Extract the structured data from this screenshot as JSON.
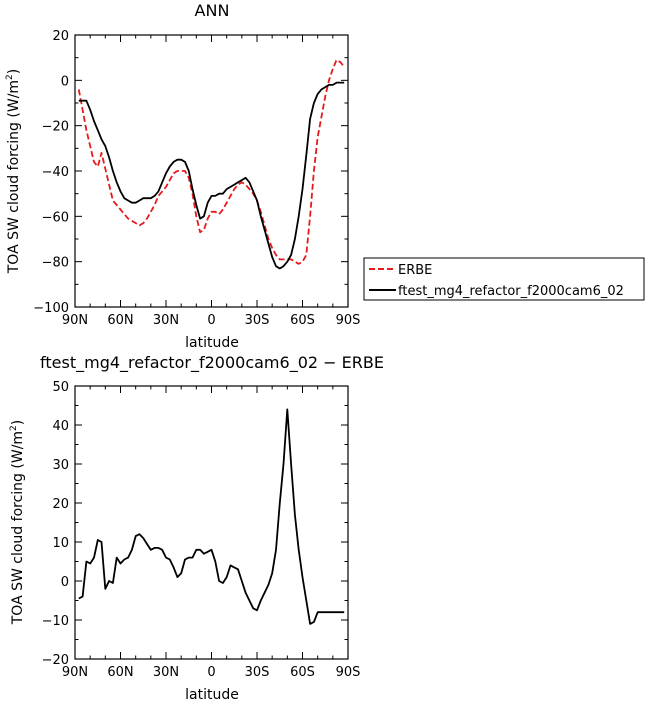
{
  "chart_data": [
    {
      "type": "line",
      "title": "ANN",
      "xlabel": "",
      "ylabel": "TOA SW cloud forcing (W/m²)",
      "ylabel_main": "TOA SW cloud forcing (W/m",
      "ylabel_sup": "2",
      "ylabel_close": ")",
      "xlim": [
        90,
        -90
      ],
      "ylim": [
        -100,
        20
      ],
      "xticks": [
        90,
        60,
        30,
        0,
        -30,
        -60,
        -90
      ],
      "xtick_labels": [
        "90N",
        "60N",
        "30N",
        "0",
        "30S",
        "60S",
        "90S"
      ],
      "yticks": [
        -100,
        -80,
        -60,
        -40,
        -20,
        0,
        20
      ],
      "ytick_labels": [
        "−100",
        "−80",
        "−60",
        "−40",
        "−20",
        "0",
        "20"
      ],
      "legend_position": "right",
      "series": [
        {
          "name": "ERBE",
          "color": "#e41a1c",
          "style": "dashed",
          "x": [
            87.5,
            85,
            82.5,
            80,
            77.5,
            75,
            72.5,
            70,
            67.5,
            65,
            62.5,
            60,
            57.5,
            55,
            52.5,
            50,
            47.5,
            45,
            42.5,
            40,
            37.5,
            35,
            32.5,
            30,
            27.5,
            25,
            22.5,
            20,
            17.5,
            15,
            12.5,
            10,
            7.5,
            5,
            2.5,
            0,
            -2.5,
            -5,
            -7.5,
            -10,
            -12.5,
            -15,
            -17.5,
            -20,
            -22.5,
            -25,
            -27.5,
            -30,
            -32.5,
            -35,
            -37.5,
            -40,
            -42.5,
            -45,
            -47.5,
            -50,
            -52.5,
            -55,
            -57.5,
            -60,
            -62.5,
            -65,
            -67.5,
            -70,
            -72.5,
            -75,
            -77.5,
            -80,
            -82.5,
            -85,
            -87.5
          ],
          "values": [
            -4,
            -13,
            -22,
            -29,
            -36,
            -38,
            -32,
            -39,
            -46,
            -53,
            -55,
            -57,
            -59,
            -61,
            -62,
            -63,
            -64,
            -63,
            -61,
            -58,
            -55,
            -51,
            -49,
            -47,
            -44,
            -41,
            -40,
            -40,
            -40,
            -43,
            -50,
            -60,
            -67,
            -66,
            -61,
            -58,
            -58,
            -59,
            -57,
            -54,
            -51,
            -48,
            -46,
            -45,
            -46,
            -48,
            -50,
            -53,
            -58,
            -64,
            -70,
            -74,
            -77,
            -79,
            -79,
            -79,
            -79,
            -80,
            -81,
            -80,
            -77,
            -60,
            -40,
            -25,
            -16,
            -7,
            0,
            5,
            9,
            8,
            6
          ]
        },
        {
          "name": "ftest_mg4_refactor_f2000cam6_02",
          "color": "#000000",
          "style": "solid",
          "x": [
            87.5,
            85,
            82.5,
            80,
            77.5,
            75,
            72.5,
            70,
            67.5,
            65,
            62.5,
            60,
            57.5,
            55,
            52.5,
            50,
            47.5,
            45,
            42.5,
            40,
            37.5,
            35,
            32.5,
            30,
            27.5,
            25,
            22.5,
            20,
            17.5,
            15,
            12.5,
            10,
            7.5,
            5,
            2.5,
            0,
            -2.5,
            -5,
            -7.5,
            -10,
            -12.5,
            -15,
            -17.5,
            -20,
            -22.5,
            -25,
            -27.5,
            -30,
            -32.5,
            -35,
            -37.5,
            -40,
            -42.5,
            -45,
            -47.5,
            -50,
            -52.5,
            -55,
            -57.5,
            -60,
            -62.5,
            -65,
            -67.5,
            -70,
            -72.5,
            -75,
            -77.5,
            -80,
            -82.5,
            -85,
            -87.5
          ],
          "values": [
            -9,
            -9,
            -9,
            -13,
            -18,
            -22,
            -26,
            -29,
            -34,
            -40,
            -45,
            -49,
            -52,
            -53,
            -54,
            -54,
            -53,
            -52,
            -52,
            -52,
            -51,
            -49,
            -45,
            -41,
            -38,
            -36,
            -35,
            -35,
            -36,
            -40,
            -48,
            -55,
            -61,
            -60,
            -54,
            -51,
            -51,
            -50,
            -50,
            -48,
            -47,
            -46,
            -45,
            -44,
            -43,
            -45,
            -49,
            -53,
            -60,
            -66,
            -72,
            -78,
            -82,
            -83,
            -82,
            -80,
            -77,
            -70,
            -60,
            -48,
            -33,
            -17,
            -10,
            -6,
            -4,
            -3,
            -2,
            -2,
            -1,
            -1,
            -1
          ]
        }
      ]
    },
    {
      "type": "line",
      "title": "ftest_mg4_refactor_f2000cam6_02 − ERBE",
      "xlabel": "latitude",
      "ylabel": "TOA SW cloud forcing (W/m²)",
      "ylabel_main": "TOA SW cloud forcing (W/m",
      "ylabel_sup": "2",
      "ylabel_close": ")",
      "xlim": [
        90,
        -90
      ],
      "ylim": [
        -20,
        50
      ],
      "xticks": [
        90,
        60,
        30,
        0,
        -30,
        -60,
        -90
      ],
      "xtick_labels": [
        "90N",
        "60N",
        "30N",
        "0",
        "30S",
        "60S",
        "90S"
      ],
      "yticks": [
        -20,
        -10,
        0,
        10,
        20,
        30,
        40,
        50
      ],
      "ytick_labels": [
        "−20",
        "−10",
        "0",
        "10",
        "20",
        "30",
        "40",
        "50"
      ],
      "series": [
        {
          "color": "#000000",
          "style": "solid",
          "x": [
            87.5,
            85,
            82.5,
            80,
            77.5,
            75,
            72.5,
            70,
            67.5,
            65,
            62.5,
            60,
            57.5,
            55,
            52.5,
            50,
            47.5,
            45,
            42.5,
            40,
            37.5,
            35,
            32.5,
            30,
            27.5,
            25,
            22.5,
            20,
            17.5,
            15,
            12.5,
            10,
            7.5,
            5,
            2.5,
            0,
            -2.5,
            -5,
            -7.5,
            -10,
            -12.5,
            -15,
            -17.5,
            -20,
            -22.5,
            -25,
            -27.5,
            -30,
            -32.5,
            -35,
            -37.5,
            -40,
            -42.5,
            -45,
            -47.5,
            -50,
            -52.5,
            -55,
            -57.5,
            -60,
            -62.5,
            -65,
            -67.5,
            -70,
            -72.5,
            -75,
            -77.5,
            -80,
            -82.5,
            -85,
            -87.5
          ],
          "values": [
            -4.5,
            -4,
            5,
            4.5,
            6,
            10.5,
            10,
            -2,
            0,
            -0.5,
            6,
            4.5,
            5.5,
            6,
            8,
            11.5,
            12,
            11,
            9.5,
            8,
            8.5,
            8.5,
            8,
            6,
            5.5,
            3.5,
            1,
            2,
            5.5,
            6,
            6,
            8,
            8,
            7,
            7.5,
            8,
            5,
            0,
            -0.5,
            1,
            4,
            3.5,
            3,
            0,
            -3,
            -5,
            -7,
            -7.5,
            -5,
            -3,
            -1,
            2,
            8,
            20,
            30,
            44,
            30,
            17,
            8,
            1,
            -5,
            -11,
            -10.5,
            -8,
            -8,
            -8,
            -8,
            -8,
            -8,
            -8,
            -8
          ]
        }
      ]
    }
  ],
  "legend": {
    "entries": [
      {
        "label": "ERBE",
        "color": "#e41a1c",
        "style": "dashed"
      },
      {
        "label": "ftest_mg4_refactor_f2000cam6_02",
        "color": "#000000",
        "style": "solid"
      }
    ]
  }
}
